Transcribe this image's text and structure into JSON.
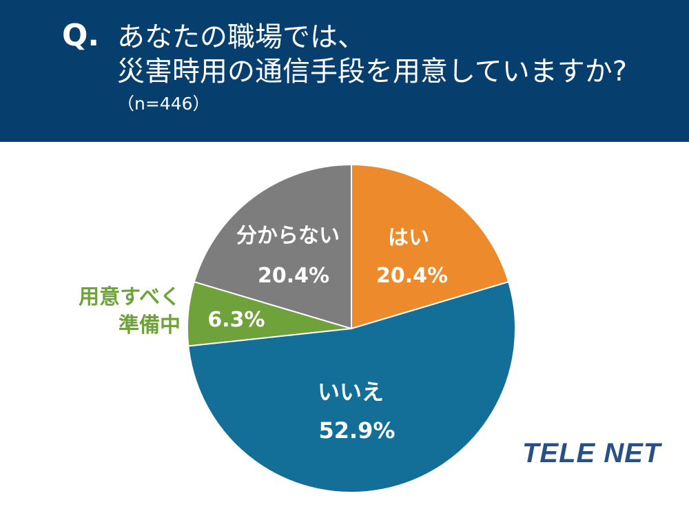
{
  "header": {
    "q_mark": "Q.",
    "title_line1": "あなたの職場では、",
    "title_line2": "災害時用の通信手段を用意していますか?",
    "sample": "（n=446）"
  },
  "chart_data": {
    "type": "pie",
    "start_angle": "12 o'clock",
    "direction": "clockwise",
    "slices": [
      {
        "label": "はい",
        "value": 20.4,
        "value_label": "20.4%",
        "color": "#ec8a2c"
      },
      {
        "label": "いいえ",
        "value": 52.9,
        "value_label": "52.9%",
        "color": "#136f98"
      },
      {
        "label": "用意すべく\n準備中",
        "label_lines": [
          "用意すべく",
          "準備中"
        ],
        "value": 6.3,
        "value_label": "6.3%",
        "color": "#6fa23a"
      },
      {
        "label": "分からない",
        "value": 20.4,
        "value_label": "20.4%",
        "color": "#7d7d7d"
      }
    ]
  },
  "logo": {
    "text": "TELE NET",
    "color": "#2a4f83"
  }
}
